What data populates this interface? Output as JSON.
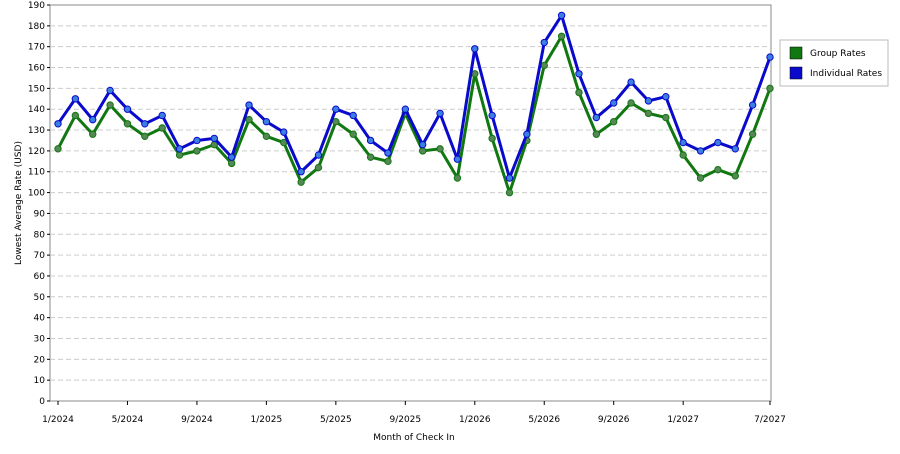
{
  "chart_data": {
    "type": "line",
    "x_label": "Month of Check In",
    "y_label": "Lowest Average Rate (USD)",
    "categories": [
      "1/2024",
      null,
      null,
      null,
      "5/2024",
      null,
      null,
      null,
      "9/2024",
      null,
      null,
      null,
      "1/2025",
      null,
      null,
      null,
      "5/2025",
      null,
      null,
      null,
      "9/2025",
      null,
      null,
      null,
      "1/2026",
      null,
      null,
      null,
      "5/2026",
      null,
      null,
      null,
      "9/2026",
      null,
      null,
      null,
      "1/2027",
      null,
      null,
      null,
      null,
      "7/2027"
    ],
    "series": [
      {
        "name": "Group Rates",
        "color": "#117711",
        "marker": "#558855",
        "values": [
          121,
          137,
          128,
          142,
          133,
          127,
          131,
          118,
          120,
          123,
          114,
          135,
          127,
          124,
          105,
          112,
          134,
          128,
          117,
          115,
          138,
          120,
          121,
          107,
          157,
          126,
          100,
          125,
          161,
          175,
          148,
          128,
          134,
          143,
          138,
          136,
          118,
          107,
          111,
          108,
          128,
          150
        ]
      },
      {
        "name": "Individual Rates",
        "color": "#0a0acc",
        "marker": "#3b7fe0",
        "values": [
          133,
          145,
          135,
          149,
          140,
          133,
          137,
          121,
          125,
          126,
          117,
          142,
          134,
          129,
          110,
          118,
          140,
          137,
          125,
          119,
          140,
          123,
          138,
          116,
          169,
          137,
          107,
          128,
          172,
          185,
          157,
          136,
          143,
          153,
          144,
          146,
          124,
          120,
          124,
          121,
          142,
          165
        ]
      }
    ],
    "ylim": [
      0,
      190
    ],
    "yticks": [
      0,
      10,
      20,
      30,
      40,
      50,
      60,
      70,
      80,
      90,
      100,
      110,
      120,
      130,
      140,
      150,
      160,
      170,
      180,
      190
    ],
    "grid": true,
    "legend": "right"
  }
}
